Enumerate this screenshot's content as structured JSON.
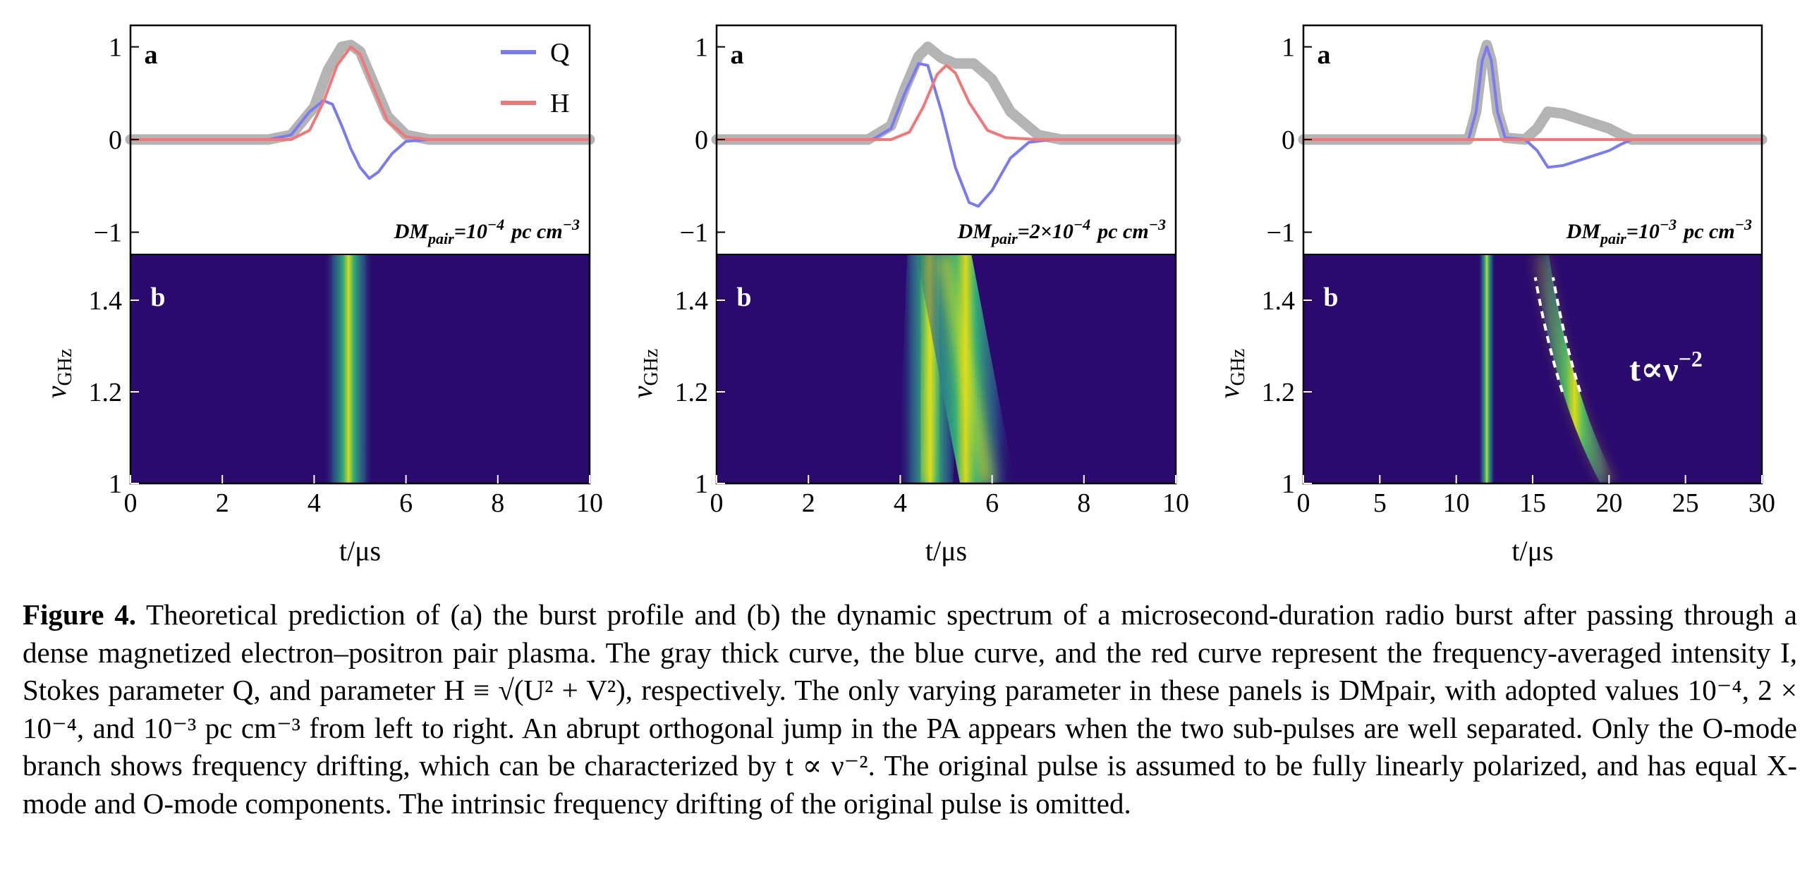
{
  "chart_data": [
    {
      "type": "line",
      "panel": "left",
      "panel_labels": [
        "a",
        "b"
      ],
      "annotation": "DMpair=10^-4 pc cm^-3",
      "annotation_parts": {
        "base": "DM",
        "sub": "pair",
        "eq": "=10",
        "exp": "−4",
        "unit": "pc cm",
        "unit_exp": "−3"
      },
      "legend": [
        {
          "name": "Q",
          "color": "#7b7bf0"
        },
        {
          "name": "H",
          "color": "#f07878"
        }
      ],
      "legend_placement": "top-right",
      "x": {
        "label": "t/μs",
        "ticks": [
          0,
          2,
          4,
          6,
          8,
          10
        ],
        "lim": [
          0,
          10
        ]
      },
      "profile": {
        "y_ticks": [
          "1",
          "0",
          "−1"
        ],
        "ylim": [
          -1.25,
          1.1
        ],
        "series": [
          {
            "name": "I",
            "color": "#b0b0b0",
            "x": [
              0,
              3,
              3.5,
              4,
              4.3,
              4.6,
              4.8,
              5,
              5.3,
              5.6,
              6,
              6.5,
              10
            ],
            "y": [
              0,
              0,
              0.05,
              0.35,
              0.75,
              1.0,
              1.02,
              0.95,
              0.6,
              0.25,
              0.05,
              0,
              0
            ]
          },
          {
            "name": "Q",
            "color": "#7b7bf0",
            "x": [
              0,
              3,
              3.5,
              3.9,
              4.2,
              4.4,
              4.6,
              4.8,
              5.0,
              5.2,
              5.4,
              5.7,
              6.0,
              6.5,
              10
            ],
            "y": [
              0,
              0,
              0.05,
              0.3,
              0.42,
              0.38,
              0.15,
              -0.1,
              -0.3,
              -0.42,
              -0.35,
              -0.15,
              -0.02,
              0,
              0
            ]
          },
          {
            "name": "H",
            "color": "#f07878",
            "x": [
              0,
              3.5,
              3.9,
              4.2,
              4.5,
              4.8,
              5.0,
              5.3,
              5.6,
              6.0,
              6.5,
              10
            ],
            "y": [
              0,
              0,
              0.1,
              0.4,
              0.8,
              1.0,
              0.92,
              0.55,
              0.2,
              0.03,
              0,
              0
            ]
          }
        ]
      },
      "spectrum": {
        "y_label": "ν",
        "y_label_sub": "GHz",
        "y_ticks": [
          "1.4",
          "1.2",
          "1"
        ],
        "ylim": [
          1.0,
          1.5
        ],
        "branches": [
          {
            "t_at_1GHz": 4.75,
            "t_at_1_5GHz": 4.75,
            "width_us": 0.55
          }
        ]
      }
    },
    {
      "type": "line",
      "panel": "middle",
      "panel_labels": [
        "a",
        "b"
      ],
      "annotation_parts": {
        "base": "DM",
        "sub": "pair",
        "eq": "=2×10",
        "exp": "−4",
        "unit": "pc cm",
        "unit_exp": "−3"
      },
      "x": {
        "label": "t/μs",
        "ticks": [
          0,
          2,
          4,
          6,
          8,
          10
        ],
        "lim": [
          0,
          10
        ]
      },
      "profile": {
        "y_ticks": [
          "1",
          "0",
          "−1"
        ],
        "ylim": [
          -1.25,
          1.1
        ],
        "series": [
          {
            "name": "I",
            "color": "#b0b0b0",
            "x": [
              0,
              3.3,
              3.8,
              4.1,
              4.4,
              4.6,
              4.9,
              5.2,
              5.6,
              6.0,
              6.4,
              7.0,
              7.5,
              10
            ],
            "y": [
              0,
              0,
              0.15,
              0.55,
              0.9,
              1.0,
              0.88,
              0.82,
              0.82,
              0.65,
              0.3,
              0.05,
              0,
              0
            ]
          },
          {
            "name": "Q",
            "color": "#7b7bf0",
            "x": [
              0,
              3.4,
              3.8,
              4.1,
              4.4,
              4.6,
              4.9,
              5.2,
              5.5,
              5.7,
              6.0,
              6.4,
              6.8,
              7.3,
              10
            ],
            "y": [
              0,
              0,
              0.12,
              0.5,
              0.82,
              0.8,
              0.3,
              -0.3,
              -0.68,
              -0.72,
              -0.55,
              -0.2,
              -0.03,
              0,
              0
            ]
          },
          {
            "name": "H",
            "color": "#f07878",
            "x": [
              0,
              3.8,
              4.2,
              4.5,
              4.8,
              5.0,
              5.2,
              5.5,
              5.9,
              6.3,
              7.0,
              10
            ],
            "y": [
              0,
              0,
              0.08,
              0.35,
              0.7,
              0.8,
              0.72,
              0.4,
              0.1,
              0.02,
              0,
              0
            ]
          }
        ]
      },
      "spectrum": {
        "y_label": "ν",
        "y_label_sub": "GHz",
        "y_ticks": [
          "1.4",
          "1.2",
          "1"
        ],
        "ylim": [
          1.0,
          1.5
        ],
        "branches": [
          {
            "t_at_1GHz": 4.55,
            "t_at_1_5GHz": 4.75,
            "width_us": 0.6
          },
          {
            "t_at_1GHz": 5.9,
            "t_at_1_5GHz": 4.95,
            "width_us": 0.6
          }
        ]
      }
    },
    {
      "type": "line",
      "panel": "right",
      "panel_labels": [
        "a",
        "b"
      ],
      "annotation_parts": {
        "base": "DM",
        "sub": "pair",
        "eq": "=10",
        "exp": "−3",
        "unit": "pc cm",
        "unit_exp": "−3"
      },
      "x": {
        "label": "t/μs",
        "ticks": [
          0,
          5,
          10,
          15,
          20,
          25,
          30
        ],
        "lim": [
          0,
          30
        ]
      },
      "profile": {
        "y_ticks": [
          "1",
          "0",
          "−1"
        ],
        "ylim": [
          -1.25,
          1.1
        ],
        "series": [
          {
            "name": "I",
            "color": "#b0b0b0",
            "x": [
              0,
              10.8,
              11.3,
              11.7,
              12.0,
              12.3,
              12.7,
              13.2,
              14.5,
              15.3,
              16.0,
              17.0,
              18.5,
              20.0,
              20.8,
              21.5,
              30
            ],
            "y": [
              0,
              0,
              0.3,
              0.85,
              1.02,
              0.85,
              0.3,
              0.02,
              0,
              0.12,
              0.3,
              0.28,
              0.2,
              0.12,
              0.05,
              0,
              0
            ]
          },
          {
            "name": "Q",
            "color": "#7b7bf0",
            "x": [
              0,
              10.8,
              11.3,
              11.7,
              12.0,
              12.3,
              12.7,
              13.2,
              14.5,
              15.3,
              16.0,
              17.0,
              18.5,
              20.0,
              20.8,
              21.5,
              30
            ],
            "y": [
              0,
              0,
              0.3,
              0.85,
              1.0,
              0.85,
              0.3,
              0.02,
              0,
              -0.12,
              -0.3,
              -0.28,
              -0.2,
              -0.12,
              -0.05,
              0,
              0
            ]
          },
          {
            "name": "H",
            "color": "#f07878",
            "x": [
              0,
              30
            ],
            "y": [
              0,
              0
            ]
          }
        ]
      },
      "spectrum": {
        "y_label": "ν",
        "y_label_sub": "GHz",
        "y_ticks": [
          "1.4",
          "1.2",
          "1"
        ],
        "ylim": [
          1.0,
          1.5
        ],
        "branches": [
          {
            "t_at_1GHz": 12.0,
            "t_at_1_5GHz": 12.0,
            "width_us": 0.55
          },
          {
            "drift": "t ∝ ν^-2",
            "t_at_1GHz": 20.0,
            "t_at_1_5GHz": 15.5,
            "width_us": 0.55
          }
        ],
        "annotation": {
          "t": "t∝ν",
          "sup": "−2"
        }
      }
    }
  ],
  "caption": {
    "lead": "Figure 4.",
    "text": " Theoretical prediction of (a) the burst profile and (b) the dynamic spectrum of a microsecond-duration radio burst after passing through a dense magnetized electron–positron pair plasma. The gray thick curve, the blue curve, and the red curve represent the frequency-averaged intensity I, Stokes parameter Q, and parameter H ≡ √(U² + V²), respectively. The only varying parameter in these panels is DMpair, with adopted values 10⁻⁴, 2 × 10⁻⁴, and 10⁻³ pc cm⁻³ from left to right. An abrupt orthogonal jump in the PA appears when the two sub-pulses are well separated. Only the O-mode branch shows frequency drifting, which can be characterized by t ∝ ν⁻². The original pulse is assumed to be fully linearly polarized, and has equal X-mode and O-mode components. The intrinsic frequency drifting of the original pulse is omitted."
  }
}
